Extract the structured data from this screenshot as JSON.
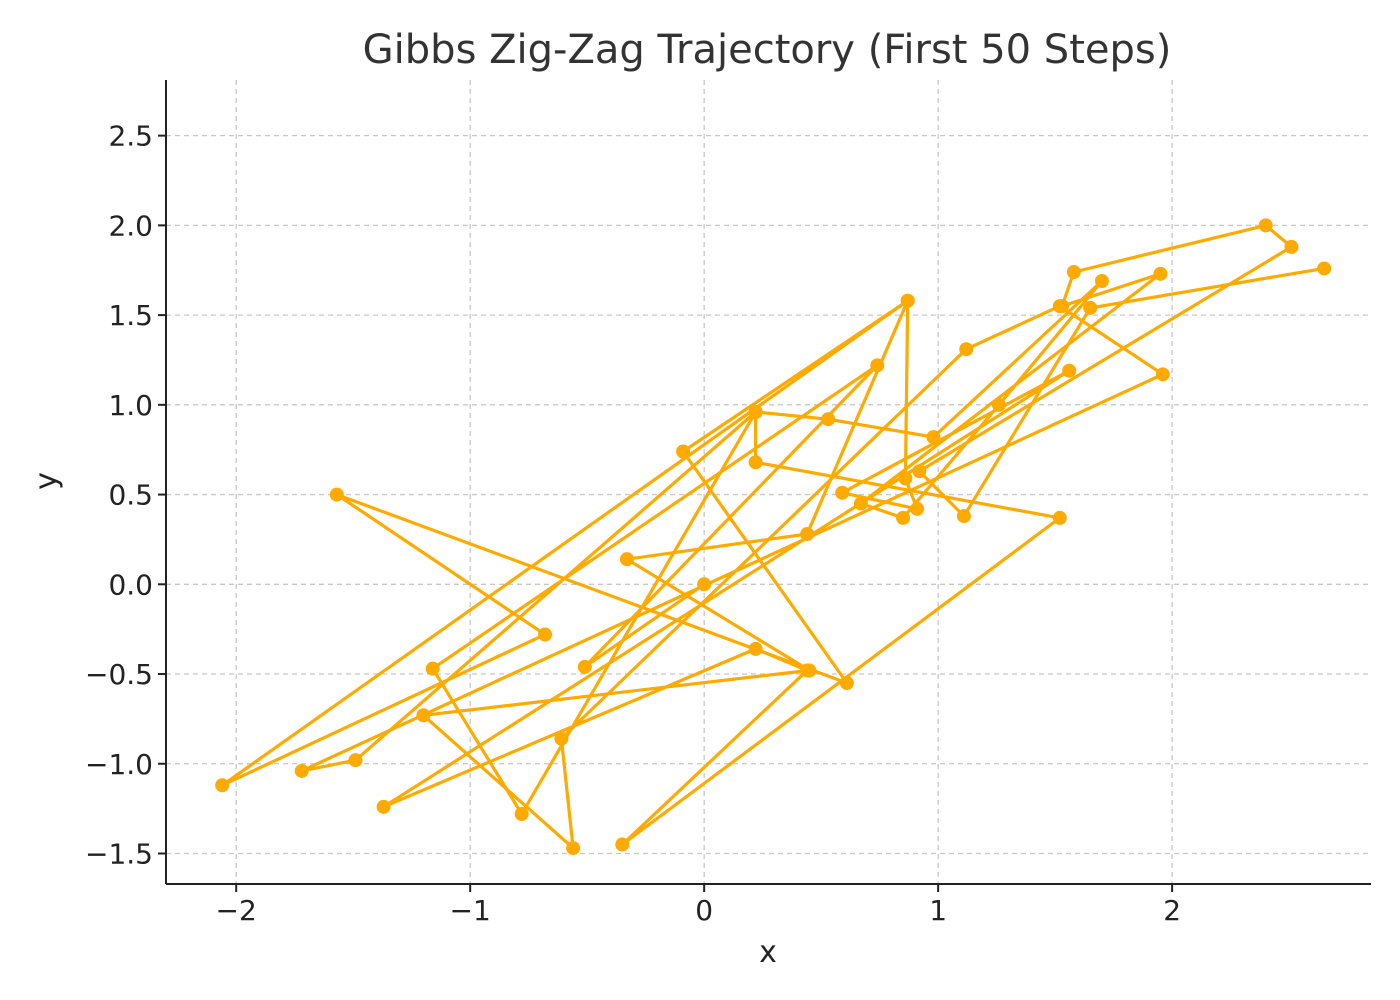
{
  "chart_data": {
    "type": "line",
    "title": "Gibbs Zig-Zag Trajectory (First 50 Steps)",
    "xlabel": "x",
    "ylabel": "y",
    "xlim": [
      -2.3,
      2.85
    ],
    "ylim": [
      -1.67,
      2.81
    ],
    "xticks": [
      -2,
      -1,
      0,
      1,
      2
    ],
    "xtick_labels": [
      "−2",
      "−1",
      "0",
      "1",
      "2"
    ],
    "yticks": [
      -1.5,
      -1.0,
      -0.5,
      0.0,
      0.5,
      1.0,
      1.5,
      2.0,
      2.5
    ],
    "ytick_labels": [
      "−1.5",
      "−1.0",
      "−0.5",
      "0.0",
      "0.5",
      "1.0",
      "1.5",
      "2.0",
      "2.5"
    ],
    "grid": true,
    "color": "#FFAA00",
    "series": [
      {
        "x": [
          0.0,
          -0.51,
          0.74,
          -1.16,
          -0.78,
          0.22,
          0.22,
          1.52,
          -0.35,
          0.44,
          0.22,
          -1.37,
          1.56,
          0.59,
          0.91,
          0.86,
          0.87,
          -0.09,
          0.61,
          -1.57,
          -0.68,
          -2.06,
          0.87,
          0.44,
          -0.33,
          0.45,
          -1.2,
          -0.56,
          -0.61,
          1.12,
          1.52,
          1.96,
          -1.72,
          -1.49,
          0.22,
          0.53,
          0.98,
          1.7,
          1.26,
          0.85,
          0.67,
          1.95,
          1.53,
          1.58,
          2.4,
          2.51,
          0.92,
          1.11,
          1.65,
          2.65
        ],
        "y": [
          0.0,
          -0.46,
          1.22,
          -0.47,
          -1.28,
          0.96,
          0.68,
          0.37,
          -1.45,
          -0.48,
          -0.36,
          -1.24,
          1.19,
          0.51,
          0.42,
          0.59,
          1.58,
          0.74,
          -0.55,
          0.5,
          -0.28,
          -1.12,
          1.58,
          0.28,
          0.14,
          -0.48,
          -0.73,
          -1.47,
          -0.86,
          1.31,
          1.55,
          1.17,
          -1.04,
          -0.98,
          0.96,
          0.92,
          0.82,
          1.69,
          1.0,
          0.37,
          0.45,
          1.73,
          1.55,
          1.74,
          2.0,
          1.88,
          0.63,
          0.38,
          1.54,
          1.76
        ]
      }
    ]
  }
}
